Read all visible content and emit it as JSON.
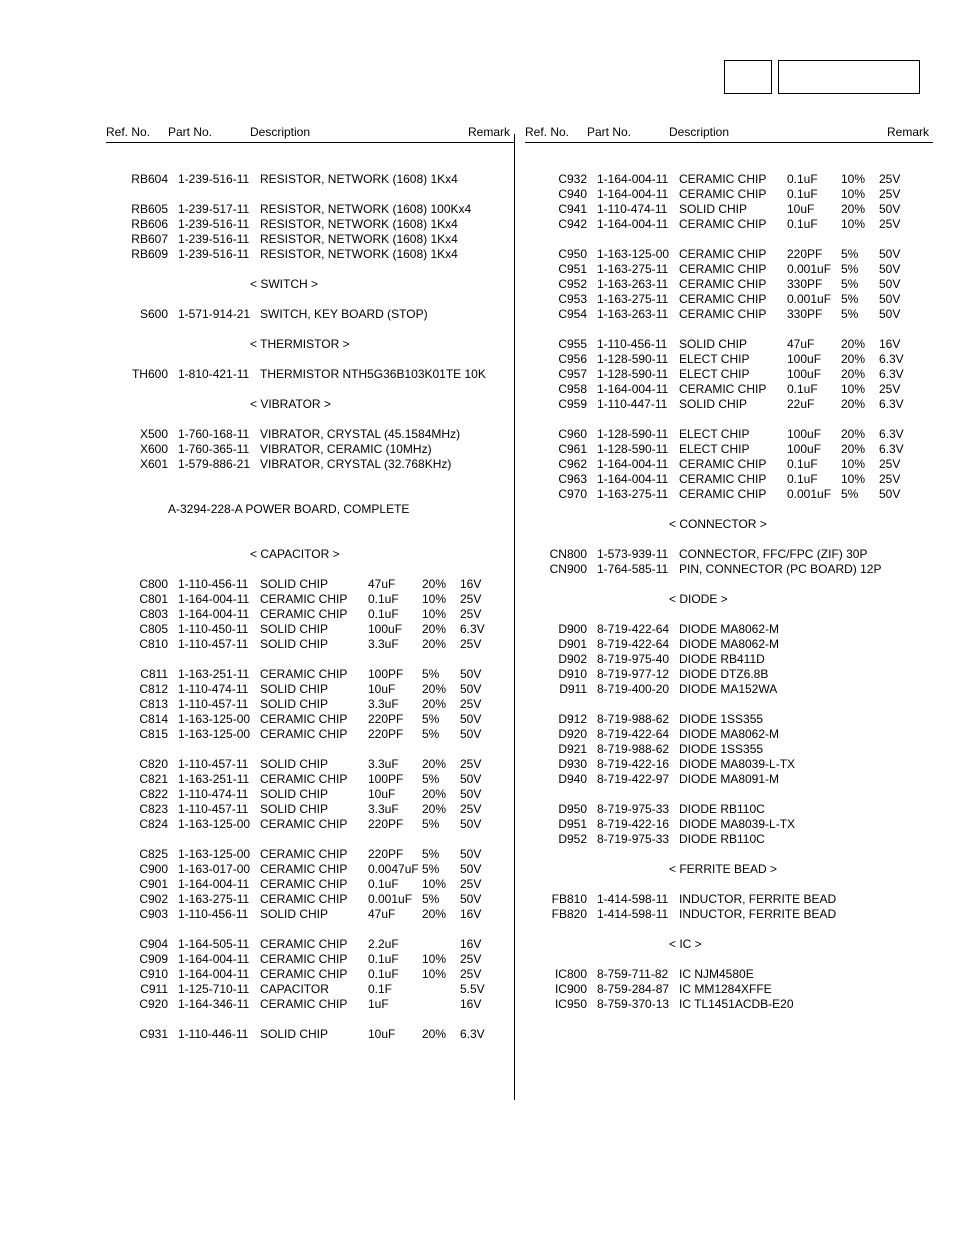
{
  "headers": {
    "ref": "Ref. No.",
    "part": "Part No.",
    "desc": "Description",
    "remark": "Remark"
  },
  "left": [
    {
      "t": "gap"
    },
    {
      "t": "row",
      "ref": "RB604",
      "part": "1-239-516-11",
      "desc": "RESISTOR, NETWORK (1608) 1Kx4"
    },
    {
      "t": "gap"
    },
    {
      "t": "row",
      "ref": "RB605",
      "part": "1-239-517-11",
      "desc": "RESISTOR, NETWORK (1608) 100Kx4"
    },
    {
      "t": "row",
      "ref": "RB606",
      "part": "1-239-516-11",
      "desc": "RESISTOR, NETWORK (1608) 1Kx4"
    },
    {
      "t": "row",
      "ref": "RB607",
      "part": "1-239-516-11",
      "desc": "RESISTOR, NETWORK (1608) 1Kx4"
    },
    {
      "t": "row",
      "ref": "RB609",
      "part": "1-239-516-11",
      "desc": "RESISTOR, NETWORK (1608) 1Kx4"
    },
    {
      "t": "gap"
    },
    {
      "t": "section",
      "text": "< SWITCH >"
    },
    {
      "t": "gap"
    },
    {
      "t": "row",
      "ref": "S600",
      "part": "1-571-914-21",
      "desc": "SWITCH, KEY BOARD (STOP)"
    },
    {
      "t": "gap"
    },
    {
      "t": "section",
      "text": "< THERMISTOR >"
    },
    {
      "t": "gap"
    },
    {
      "t": "row",
      "ref": "TH600",
      "part": "1-810-421-11",
      "desc": "THERMISTOR NTH5G36B103K01TE 10K"
    },
    {
      "t": "gap"
    },
    {
      "t": "section",
      "text": "< VIBRATOR >"
    },
    {
      "t": "gap"
    },
    {
      "t": "row",
      "ref": "X500",
      "part": "1-760-168-11",
      "desc": "VIBRATOR, CRYSTAL (45.1584MHz)"
    },
    {
      "t": "row",
      "ref": "X600",
      "part": "1-760-365-11",
      "desc": "VIBRATOR, CERAMIC (10MHz)"
    },
    {
      "t": "row",
      "ref": "X601",
      "part": "1-579-886-21",
      "desc": "VIBRATOR, CRYSTAL (32.768KHz)"
    },
    {
      "t": "gap"
    },
    {
      "t": "gap"
    },
    {
      "t": "sectionfull",
      "text": "A-3294-228-A  POWER  BOARD, COMPLETE"
    },
    {
      "t": "gap"
    },
    {
      "t": "gap"
    },
    {
      "t": "section",
      "text": "< CAPACITOR >"
    },
    {
      "t": "gap"
    },
    {
      "t": "row",
      "ref": "C800",
      "part": "1-110-456-11",
      "desc": "SOLID CHIP",
      "v1": "47uF",
      "v2": "20%",
      "v3": "16V"
    },
    {
      "t": "row",
      "ref": "C801",
      "part": "1-164-004-11",
      "desc": "CERAMIC CHIP",
      "v1": "0.1uF",
      "v2": "10%",
      "v3": "25V"
    },
    {
      "t": "row",
      "ref": "C803",
      "part": "1-164-004-11",
      "desc": "CERAMIC CHIP",
      "v1": "0.1uF",
      "v2": "10%",
      "v3": "25V"
    },
    {
      "t": "row",
      "ref": "C805",
      "part": "1-110-450-11",
      "desc": "SOLID CHIP",
      "v1": "100uF",
      "v2": "20%",
      "v3": "6.3V"
    },
    {
      "t": "row",
      "ref": "C810",
      "part": "1-110-457-11",
      "desc": "SOLID CHIP",
      "v1": "3.3uF",
      "v2": "20%",
      "v3": "25V"
    },
    {
      "t": "gap"
    },
    {
      "t": "row",
      "ref": "C811",
      "part": "1-163-251-11",
      "desc": "CERAMIC CHIP",
      "v1": "100PF",
      "v2": "5%",
      "v3": "50V"
    },
    {
      "t": "row",
      "ref": "C812",
      "part": "1-110-474-11",
      "desc": "SOLID CHIP",
      "v1": "10uF",
      "v2": "20%",
      "v3": "50V"
    },
    {
      "t": "row",
      "ref": "C813",
      "part": "1-110-457-11",
      "desc": "SOLID CHIP",
      "v1": "3.3uF",
      "v2": "20%",
      "v3": "25V"
    },
    {
      "t": "row",
      "ref": "C814",
      "part": "1-163-125-00",
      "desc": "CERAMIC CHIP",
      "v1": "220PF",
      "v2": "5%",
      "v3": "50V"
    },
    {
      "t": "row",
      "ref": "C815",
      "part": "1-163-125-00",
      "desc": "CERAMIC CHIP",
      "v1": "220PF",
      "v2": "5%",
      "v3": "50V"
    },
    {
      "t": "gap"
    },
    {
      "t": "row",
      "ref": "C820",
      "part": "1-110-457-11",
      "desc": "SOLID CHIP",
      "v1": "3.3uF",
      "v2": "20%",
      "v3": "25V"
    },
    {
      "t": "row",
      "ref": "C821",
      "part": "1-163-251-11",
      "desc": "CERAMIC CHIP",
      "v1": "100PF",
      "v2": "5%",
      "v3": "50V"
    },
    {
      "t": "row",
      "ref": "C822",
      "part": "1-110-474-11",
      "desc": "SOLID CHIP",
      "v1": "10uF",
      "v2": "20%",
      "v3": "50V"
    },
    {
      "t": "row",
      "ref": "C823",
      "part": "1-110-457-11",
      "desc": "SOLID CHIP",
      "v1": "3.3uF",
      "v2": "20%",
      "v3": "25V"
    },
    {
      "t": "row",
      "ref": "C824",
      "part": "1-163-125-00",
      "desc": "CERAMIC CHIP",
      "v1": "220PF",
      "v2": "5%",
      "v3": "50V"
    },
    {
      "t": "gap"
    },
    {
      "t": "row",
      "ref": "C825",
      "part": "1-163-125-00",
      "desc": "CERAMIC CHIP",
      "v1": "220PF",
      "v2": "5%",
      "v3": "50V"
    },
    {
      "t": "row",
      "ref": "C900",
      "part": "1-163-017-00",
      "desc": "CERAMIC CHIP",
      "v1": "0.0047uF",
      "v2": "5%",
      "v3": "50V"
    },
    {
      "t": "row",
      "ref": "C901",
      "part": "1-164-004-11",
      "desc": "CERAMIC CHIP",
      "v1": "0.1uF",
      "v2": "10%",
      "v3": "25V"
    },
    {
      "t": "row",
      "ref": "C902",
      "part": "1-163-275-11",
      "desc": "CERAMIC CHIP",
      "v1": "0.001uF",
      "v2": "5%",
      "v3": "50V"
    },
    {
      "t": "row",
      "ref": "C903",
      "part": "1-110-456-11",
      "desc": "SOLID CHIP",
      "v1": "47uF",
      "v2": "20%",
      "v3": "16V"
    },
    {
      "t": "gap"
    },
    {
      "t": "row",
      "ref": "C904",
      "part": "1-164-505-11",
      "desc": "CERAMIC CHIP",
      "v1": "2.2uF",
      "v2": "",
      "v3": "16V"
    },
    {
      "t": "row",
      "ref": "C909",
      "part": "1-164-004-11",
      "desc": "CERAMIC CHIP",
      "v1": "0.1uF",
      "v2": "10%",
      "v3": "25V"
    },
    {
      "t": "row",
      "ref": "C910",
      "part": "1-164-004-11",
      "desc": "CERAMIC CHIP",
      "v1": "0.1uF",
      "v2": "10%",
      "v3": "25V"
    },
    {
      "t": "row",
      "ref": "C911",
      "part": "1-125-710-11",
      "desc": "CAPACITOR",
      "v1": "0.1F",
      "v2": "",
      "v3": "5.5V"
    },
    {
      "t": "row",
      "ref": "C920",
      "part": "1-164-346-11",
      "desc": "CERAMIC CHIP",
      "v1": "1uF",
      "v2": "",
      "v3": "16V"
    },
    {
      "t": "gap"
    },
    {
      "t": "row",
      "ref": "C931",
      "part": "1-110-446-11",
      "desc": "SOLID CHIP",
      "v1": "10uF",
      "v2": "20%",
      "v3": "6.3V"
    }
  ],
  "right": [
    {
      "t": "gap"
    },
    {
      "t": "row",
      "ref": "C932",
      "part": "1-164-004-11",
      "desc": "CERAMIC CHIP",
      "v1": "0.1uF",
      "v2": "10%",
      "v3": "25V"
    },
    {
      "t": "row",
      "ref": "C940",
      "part": "1-164-004-11",
      "desc": "CERAMIC CHIP",
      "v1": "0.1uF",
      "v2": "10%",
      "v3": "25V"
    },
    {
      "t": "row",
      "ref": "C941",
      "part": "1-110-474-11",
      "desc": "SOLID CHIP",
      "v1": "10uF",
      "v2": "20%",
      "v3": "50V"
    },
    {
      "t": "row",
      "ref": "C942",
      "part": "1-164-004-11",
      "desc": "CERAMIC CHIP",
      "v1": "0.1uF",
      "v2": "10%",
      "v3": "25V"
    },
    {
      "t": "gap"
    },
    {
      "t": "row",
      "ref": "C950",
      "part": "1-163-125-00",
      "desc": "CERAMIC CHIP",
      "v1": "220PF",
      "v2": "5%",
      "v3": "50V"
    },
    {
      "t": "row",
      "ref": "C951",
      "part": "1-163-275-11",
      "desc": "CERAMIC CHIP",
      "v1": "0.001uF",
      "v2": "5%",
      "v3": "50V"
    },
    {
      "t": "row",
      "ref": "C952",
      "part": "1-163-263-11",
      "desc": "CERAMIC CHIP",
      "v1": "330PF",
      "v2": "5%",
      "v3": "50V"
    },
    {
      "t": "row",
      "ref": "C953",
      "part": "1-163-275-11",
      "desc": "CERAMIC CHIP",
      "v1": "0.001uF",
      "v2": "5%",
      "v3": "50V"
    },
    {
      "t": "row",
      "ref": "C954",
      "part": "1-163-263-11",
      "desc": "CERAMIC CHIP",
      "v1": "330PF",
      "v2": "5%",
      "v3": "50V"
    },
    {
      "t": "gap"
    },
    {
      "t": "row",
      "ref": "C955",
      "part": "1-110-456-11",
      "desc": "SOLID CHIP",
      "v1": "47uF",
      "v2": "20%",
      "v3": "16V"
    },
    {
      "t": "row",
      "ref": "C956",
      "part": "1-128-590-11",
      "desc": "ELECT CHIP",
      "v1": "100uF",
      "v2": "20%",
      "v3": "6.3V"
    },
    {
      "t": "row",
      "ref": "C957",
      "part": "1-128-590-11",
      "desc": "ELECT CHIP",
      "v1": "100uF",
      "v2": "20%",
      "v3": "6.3V"
    },
    {
      "t": "row",
      "ref": "C958",
      "part": "1-164-004-11",
      "desc": "CERAMIC CHIP",
      "v1": "0.1uF",
      "v2": "10%",
      "v3": "25V"
    },
    {
      "t": "row",
      "ref": "C959",
      "part": "1-110-447-11",
      "desc": "SOLID CHIP",
      "v1": "22uF",
      "v2": "20%",
      "v3": "6.3V"
    },
    {
      "t": "gap"
    },
    {
      "t": "row",
      "ref": "C960",
      "part": "1-128-590-11",
      "desc": "ELECT CHIP",
      "v1": "100uF",
      "v2": "20%",
      "v3": "6.3V"
    },
    {
      "t": "row",
      "ref": "C961",
      "part": "1-128-590-11",
      "desc": "ELECT CHIP",
      "v1": "100uF",
      "v2": "20%",
      "v3": "6.3V"
    },
    {
      "t": "row",
      "ref": "C962",
      "part": "1-164-004-11",
      "desc": "CERAMIC CHIP",
      "v1": "0.1uF",
      "v2": "10%",
      "v3": "25V"
    },
    {
      "t": "row",
      "ref": "C963",
      "part": "1-164-004-11",
      "desc": "CERAMIC CHIP",
      "v1": "0.1uF",
      "v2": "10%",
      "v3": "25V"
    },
    {
      "t": "row",
      "ref": "C970",
      "part": "1-163-275-11",
      "desc": "CERAMIC CHIP",
      "v1": "0.001uF",
      "v2": "5%",
      "v3": "50V"
    },
    {
      "t": "gap"
    },
    {
      "t": "section",
      "text": "< CONNECTOR >"
    },
    {
      "t": "gap"
    },
    {
      "t": "row",
      "ref": "CN800",
      "part": "1-573-939-11",
      "desc": "CONNECTOR, FFC/FPC (ZIF) 30P"
    },
    {
      "t": "row",
      "ref": "CN900",
      "part": "1-764-585-11",
      "desc": "PIN, CONNECTOR (PC BOARD) 12P"
    },
    {
      "t": "gap"
    },
    {
      "t": "section",
      "text": "< DIODE >"
    },
    {
      "t": "gap"
    },
    {
      "t": "row",
      "ref": "D900",
      "part": "8-719-422-64",
      "desc": "DIODE  MA8062-M"
    },
    {
      "t": "row",
      "ref": "D901",
      "part": "8-719-422-64",
      "desc": "DIODE  MA8062-M"
    },
    {
      "t": "row",
      "ref": "D902",
      "part": "8-719-975-40",
      "desc": "DIODE  RB411D"
    },
    {
      "t": "row",
      "ref": "D910",
      "part": "8-719-977-12",
      "desc": "DIODE  DTZ6.8B"
    },
    {
      "t": "row",
      "ref": "D911",
      "part": "8-719-400-20",
      "desc": "DIODE  MA152WA"
    },
    {
      "t": "gap"
    },
    {
      "t": "row",
      "ref": "D912",
      "part": "8-719-988-62",
      "desc": "DIODE  1SS355"
    },
    {
      "t": "row",
      "ref": "D920",
      "part": "8-719-422-64",
      "desc": "DIODE  MA8062-M"
    },
    {
      "t": "row",
      "ref": "D921",
      "part": "8-719-988-62",
      "desc": "DIODE  1SS355"
    },
    {
      "t": "row",
      "ref": "D930",
      "part": "8-719-422-16",
      "desc": "DIODE  MA8039-L-TX"
    },
    {
      "t": "row",
      "ref": "D940",
      "part": "8-719-422-97",
      "desc": "DIODE  MA8091-M"
    },
    {
      "t": "gap"
    },
    {
      "t": "row",
      "ref": "D950",
      "part": "8-719-975-33",
      "desc": "DIODE  RB110C"
    },
    {
      "t": "row",
      "ref": "D951",
      "part": "8-719-422-16",
      "desc": "DIODE  MA8039-L-TX"
    },
    {
      "t": "row",
      "ref": "D952",
      "part": "8-719-975-33",
      "desc": "DIODE  RB110C"
    },
    {
      "t": "gap"
    },
    {
      "t": "section",
      "text": "< FERRITE BEAD >"
    },
    {
      "t": "gap"
    },
    {
      "t": "row",
      "ref": "FB810",
      "part": "1-414-598-11",
      "desc": "INDUCTOR, FERRITE BEAD"
    },
    {
      "t": "row",
      "ref": "FB820",
      "part": "1-414-598-11",
      "desc": "INDUCTOR, FERRITE BEAD"
    },
    {
      "t": "gap"
    },
    {
      "t": "section",
      "text": "< IC >"
    },
    {
      "t": "gap"
    },
    {
      "t": "row",
      "ref": "IC800",
      "part": "8-759-711-82",
      "desc": "IC  NJM4580E"
    },
    {
      "t": "row",
      "ref": "IC900",
      "part": "8-759-284-87",
      "desc": "IC  MM1284XFFE"
    },
    {
      "t": "row",
      "ref": "IC950",
      "part": "8-759-370-13",
      "desc": "IC  TL1451ACDB-E20"
    }
  ]
}
